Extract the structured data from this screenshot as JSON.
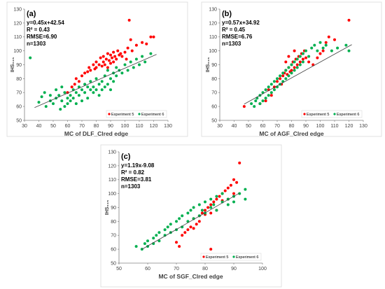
{
  "colors": {
    "exp5": "#ff0000",
    "exp6": "#00b050",
    "fit": "#404040"
  },
  "chart_data": [
    {
      "type": "scatter",
      "panel_label": "(a)",
      "xlabel": "MC of  DLF_Clred edge",
      "ylabel": "IHS₀₄₅",
      "xlim": [
        30,
        130
      ],
      "ylim": [
        50,
        130
      ],
      "xticks": [
        30,
        40,
        50,
        60,
        70,
        80,
        90,
        100,
        110,
        120,
        130
      ],
      "yticks": [
        50,
        60,
        70,
        80,
        90,
        100,
        110,
        120,
        130
      ],
      "stats": [
        "y=0.45x+42.54",
        "R² = 0.43",
        "RMSE=6.90",
        "n=1303"
      ],
      "fit": {
        "slope": 0.45,
        "intercept": 42.54,
        "x_range": [
          37,
          122
        ]
      },
      "series": [
        {
          "name": "Experiment 5",
          "color": "#ff0000",
          "x": [
            60,
            63,
            65,
            66,
            68,
            70,
            72,
            74,
            75,
            76,
            78,
            79,
            80,
            80,
            82,
            83,
            84,
            85,
            85,
            86,
            87,
            88,
            88,
            89,
            90,
            90,
            91,
            92,
            92,
            93,
            94,
            95,
            96,
            97,
            98,
            100,
            101,
            102,
            104,
            105,
            108,
            112,
            115,
            118,
            120,
            103
          ],
          "y": [
            70,
            74,
            76,
            80,
            78,
            82,
            84,
            85,
            88,
            86,
            90,
            87,
            88,
            92,
            90,
            95,
            89,
            92,
            96,
            90,
            94,
            88,
            98,
            93,
            91,
            97,
            95,
            99,
            92,
            96,
            94,
            100,
            97,
            98,
            96,
            99,
            94,
            102,
            108,
            100,
            104,
            106,
            105,
            110,
            110,
            122
          ]
        },
        {
          "name": "Experiment 6",
          "color": "#00b050",
          "x": [
            34,
            40,
            42,
            44,
            45,
            48,
            50,
            52,
            54,
            55,
            56,
            58,
            58,
            60,
            60,
            62,
            62,
            64,
            64,
            66,
            66,
            68,
            68,
            70,
            70,
            72,
            72,
            74,
            74,
            76,
            76,
            78,
            78,
            80,
            80,
            82,
            82,
            84,
            84,
            86,
            86,
            88,
            88,
            90,
            90,
            92,
            92,
            94,
            94,
            96,
            98,
            100,
            102,
            104,
            106,
            108,
            110,
            112,
            114,
            118,
            52,
            48,
            56
          ],
          "y": [
            95,
            63,
            67,
            70,
            60,
            64,
            62,
            66,
            68,
            58,
            64,
            70,
            60,
            62,
            66,
            68,
            64,
            72,
            66,
            70,
            62,
            74,
            68,
            64,
            72,
            76,
            70,
            74,
            66,
            72,
            78,
            70,
            74,
            80,
            72,
            76,
            68,
            78,
            72,
            82,
            74,
            76,
            86,
            80,
            72,
            84,
            78,
            82,
            88,
            86,
            84,
            90,
            86,
            92,
            88,
            94,
            90,
            96,
            92,
            98,
            72,
            68,
            74
          ]
        }
      ],
      "legend": {
        "placement": "bottom-right"
      }
    },
    {
      "type": "scatter",
      "panel_label": "(b)",
      "xlabel": "MC of  AGF_Clred edge",
      "ylabel": "IHS₀₄₅",
      "xlim": [
        30,
        130
      ],
      "ylim": [
        50,
        130
      ],
      "xticks": [
        30,
        40,
        50,
        60,
        70,
        80,
        90,
        100,
        110,
        120,
        130
      ],
      "yticks": [
        50,
        60,
        70,
        80,
        90,
        100,
        110,
        120,
        130
      ],
      "stats": [
        "y=0.57x+34.92",
        "R² = 0.45",
        "RMSE=6.76",
        "n=1303"
      ],
      "fit": {
        "slope": 0.57,
        "intercept": 34.92,
        "x_range": [
          47,
          122
        ]
      },
      "series": [
        {
          "name": "Experiment 5",
          "color": "#ff0000",
          "x": [
            47,
            58,
            62,
            64,
            66,
            68,
            70,
            72,
            73,
            74,
            75,
            76,
            77,
            78,
            79,
            80,
            80,
            81,
            82,
            83,
            84,
            85,
            86,
            87,
            88,
            89,
            90,
            92,
            95,
            98,
            100,
            102,
            104,
            106,
            110,
            120,
            76,
            78,
            82
          ],
          "y": [
            60,
            62,
            64,
            72,
            68,
            74,
            78,
            80,
            76,
            82,
            84,
            86,
            83,
            88,
            85,
            90,
            86,
            92,
            88,
            94,
            90,
            96,
            92,
            98,
            94,
            100,
            95,
            92,
            90,
            95,
            98,
            100,
            106,
            110,
            108,
            122,
            92,
            96,
            100
          ]
        },
        {
          "name": "Experiment 6",
          "color": "#00b050",
          "x": [
            52,
            54,
            55,
            56,
            58,
            58,
            60,
            60,
            62,
            62,
            64,
            64,
            66,
            66,
            68,
            68,
            70,
            70,
            72,
            72,
            74,
            74,
            76,
            76,
            78,
            78,
            80,
            80,
            82,
            82,
            84,
            84,
            86,
            86,
            88,
            88,
            90,
            92,
            94,
            96,
            98,
            100,
            102,
            104,
            108,
            112,
            118,
            120
          ],
          "y": [
            62,
            60,
            64,
            66,
            62,
            68,
            64,
            70,
            66,
            72,
            68,
            74,
            70,
            76,
            72,
            78,
            74,
            80,
            76,
            82,
            78,
            84,
            80,
            86,
            82,
            88,
            84,
            90,
            86,
            92,
            88,
            94,
            90,
            96,
            92,
            98,
            100,
            96,
            102,
            104,
            100,
            106,
            102,
            104,
            100,
            102,
            104,
            100
          ]
        }
      ],
      "legend": {
        "placement": "bottom-right"
      }
    },
    {
      "type": "scatter",
      "panel_label": "(c)",
      "xlabel": "MC of  SGF_Clred edge",
      "ylabel": "IHS₀₄₅",
      "xlim": [
        50,
        100
      ],
      "ylim": [
        50,
        130
      ],
      "xticks": [
        50,
        60,
        70,
        80,
        90,
        100
      ],
      "yticks": [
        50,
        60,
        70,
        80,
        90,
        100,
        110,
        120,
        130
      ],
      "stats": [
        "y=1.19x-9.08",
        "R² = 0.82",
        "RMSE=3.81",
        "n=1303"
      ],
      "fit": {
        "slope": 1.19,
        "intercept": -9.08,
        "x_range": [
          58,
          92
        ]
      },
      "series": [
        {
          "name": "Experiment 5",
          "color": "#ff0000",
          "x": [
            70,
            72,
            73,
            74,
            75,
            76,
            76,
            77,
            78,
            78,
            79,
            80,
            80,
            81,
            82,
            82,
            83,
            84,
            84,
            85,
            86,
            86,
            87,
            88,
            88,
            89,
            90,
            90,
            91,
            92,
            82,
            71
          ],
          "y": [
            65,
            70,
            72,
            74,
            76,
            75,
            82,
            78,
            84,
            80,
            86,
            85,
            88,
            90,
            86,
            92,
            94,
            88,
            96,
            98,
            95,
            100,
            102,
            96,
            104,
            106,
            100,
            110,
            108,
            122,
            60,
            62
          ]
        },
        {
          "name": "Experiment 6",
          "color": "#00b050",
          "x": [
            56,
            58,
            59,
            60,
            60,
            62,
            62,
            63,
            64,
            64,
            66,
            66,
            67,
            68,
            68,
            70,
            70,
            71,
            72,
            72,
            74,
            74,
            75,
            76,
            76,
            78,
            78,
            79,
            80,
            80,
            82,
            82,
            83,
            84,
            84,
            86,
            86,
            88,
            88,
            90,
            90,
            92,
            94,
            94
          ],
          "y": [
            62,
            60,
            64,
            62,
            66,
            64,
            68,
            70,
            66,
            72,
            70,
            74,
            76,
            72,
            78,
            74,
            80,
            82,
            76,
            84,
            80,
            86,
            88,
            82,
            90,
            84,
            92,
            88,
            86,
            94,
            90,
            96,
            92,
            88,
            98,
            94,
            100,
            96,
            92,
            98,
            94,
            100,
            96,
            103
          ]
        }
      ],
      "legend": {
        "placement": "bottom-right"
      }
    }
  ]
}
